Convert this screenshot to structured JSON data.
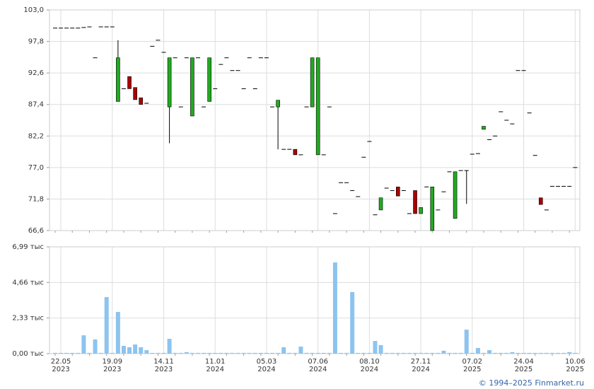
{
  "chart_data": [
    {
      "type": "candlestick",
      "open": [
        100,
        100,
        100,
        100,
        100,
        100.1,
        100.2,
        95.1,
        100.2,
        100.2,
        100.2,
        87.9,
        90.0,
        92.0,
        90.2,
        88.5,
        87.6,
        97.0,
        98.0,
        96.0,
        87.0,
        95.1,
        87.0,
        95.1,
        85.5,
        95.1,
        87.0,
        87.9,
        90.0,
        94.0,
        95.1,
        93.0,
        93.0,
        90.0,
        95.1,
        90.0,
        95.1,
        95.1,
        87.0,
        87.0,
        80.0,
        80.0,
        80.0,
        79.1,
        87.0,
        87.0,
        79.1,
        79.1,
        87.0,
        69.4,
        74.5,
        74.5,
        73.2,
        72.2,
        78.7,
        81.3,
        69.2,
        70.0,
        73.6,
        73.2,
        73.8,
        73.2,
        69.4,
        73.2,
        69.4,
        73.8,
        66.6,
        70.0,
        73.0,
        76.3,
        68.6,
        76.5,
        76.5,
        79.2,
        79.3,
        83.3,
        81.6,
        82.2,
        86.2,
        84.8,
        84.2,
        93.0,
        93.0,
        86.0,
        79.0,
        72.0,
        70.0,
        73.9,
        73.9,
        73.9,
        73.9,
        77.0
      ],
      "high": [
        100,
        100,
        100,
        100,
        100,
        100.1,
        100.2,
        95.1,
        100.2,
        100.2,
        100.2,
        98.0,
        90.0,
        92.0,
        90.2,
        88.5,
        87.6,
        97.0,
        98.0,
        96.0,
        95.1,
        95.1,
        87.0,
        95.1,
        95.1,
        95.1,
        87.0,
        95.1,
        90.0,
        94.0,
        95.1,
        93.0,
        93.0,
        90.0,
        95.1,
        90.0,
        95.1,
        95.1,
        87.0,
        88.1,
        80.0,
        80.0,
        80.0,
        79.1,
        87.0,
        95.1,
        95.1,
        79.1,
        87.0,
        69.4,
        74.5,
        74.5,
        73.2,
        72.2,
        78.7,
        81.3,
        69.2,
        72.0,
        73.6,
        73.2,
        73.8,
        73.2,
        69.4,
        73.2,
        70.4,
        73.8,
        73.8,
        70.0,
        73.0,
        76.3,
        76.3,
        76.5,
        76.5,
        79.2,
        79.3,
        83.8,
        81.6,
        82.2,
        86.2,
        84.8,
        84.2,
        93.0,
        93.0,
        86.0,
        79.0,
        72.0,
        70.0,
        73.9,
        73.9,
        73.9,
        73.9,
        77.0
      ],
      "low": [
        100,
        100,
        100,
        100,
        100,
        100.1,
        100.2,
        95.1,
        100.2,
        100.2,
        100.2,
        87.9,
        90.0,
        90.0,
        88.2,
        87.4,
        87.6,
        97.0,
        98.0,
        96.0,
        81.0,
        95.1,
        87.0,
        95.1,
        85.5,
        95.1,
        87.0,
        87.9,
        90.0,
        94.0,
        95.1,
        93.0,
        93.0,
        90.0,
        95.1,
        90.0,
        95.1,
        95.1,
        87.0,
        80.0,
        80.0,
        80.0,
        79.1,
        79.1,
        87.0,
        87.0,
        79.1,
        79.1,
        87.0,
        69.4,
        74.5,
        74.5,
        73.2,
        72.2,
        78.7,
        81.3,
        69.2,
        70.0,
        73.6,
        73.2,
        72.3,
        73.2,
        69.4,
        69.4,
        69.4,
        73.8,
        66.6,
        70.0,
        73.0,
        76.3,
        68.6,
        76.5,
        71.0,
        79.2,
        79.3,
        83.3,
        81.6,
        82.2,
        86.2,
        84.8,
        84.2,
        93.0,
        93.0,
        86.0,
        79.0,
        70.9,
        70.0,
        73.9,
        73.9,
        73.9,
        73.9,
        77.0
      ],
      "close": [
        100,
        100,
        100,
        100,
        100,
        100.1,
        100.2,
        95.1,
        100.2,
        100.2,
        100.2,
        95.1,
        90.0,
        90.0,
        88.2,
        87.4,
        87.6,
        97.0,
        98.0,
        96.0,
        95.1,
        95.1,
        87.0,
        95.1,
        95.1,
        95.1,
        87.0,
        95.1,
        90.0,
        94.0,
        95.1,
        93.0,
        93.0,
        90.0,
        95.1,
        90.0,
        95.1,
        95.1,
        87.0,
        88.1,
        80.0,
        80.0,
        79.1,
        79.1,
        87.0,
        95.1,
        95.1,
        79.1,
        87.0,
        69.4,
        74.5,
        74.5,
        73.2,
        72.2,
        78.7,
        81.3,
        69.2,
        72.0,
        73.6,
        73.2,
        72.3,
        73.2,
        69.4,
        69.4,
        70.4,
        73.8,
        73.8,
        70.0,
        73.0,
        76.3,
        76.3,
        76.5,
        76.5,
        79.2,
        79.3,
        83.8,
        81.6,
        82.2,
        86.2,
        84.8,
        84.2,
        93.0,
        93.0,
        86.0,
        79.0,
        70.9,
        70.0,
        73.9,
        73.9,
        73.9,
        73.9,
        77.0
      ],
      "up_color": "#22aa22",
      "down_color": "#aa0000",
      "ylim": [
        66.6,
        103.0
      ],
      "yticks": [
        {
          "value": 66.6,
          "label": "66,6"
        },
        {
          "value": 71.8,
          "label": "71,8"
        },
        {
          "value": 77.0,
          "label": "77,0"
        },
        {
          "value": 82.2,
          "label": "82,2"
        },
        {
          "value": 87.4,
          "label": "87,4"
        },
        {
          "value": 92.6,
          "label": "92,6"
        },
        {
          "value": 97.8,
          "label": "97,8"
        },
        {
          "value": 103.0,
          "label": "103,0"
        }
      ],
      "grid": true
    },
    {
      "type": "bar",
      "categories": [
        null,
        "22.05 2023",
        null,
        null,
        null,
        null,
        null,
        null,
        null,
        null,
        "19.09 2023",
        null,
        null,
        null,
        null,
        null,
        null,
        null,
        null,
        "14.11 2023",
        null,
        null,
        null,
        null,
        null,
        null,
        null,
        null,
        "11.01 2024",
        null,
        null,
        null,
        null,
        null,
        null,
        null,
        null,
        "05.03 2024",
        null,
        null,
        null,
        null,
        null,
        null,
        null,
        null,
        "07.06 2024",
        null,
        null,
        null,
        null,
        null,
        null,
        null,
        null,
        "08.10 2024",
        null,
        null,
        null,
        null,
        null,
        null,
        null,
        null,
        "27.11 2024",
        null,
        null,
        null,
        null,
        null,
        null,
        null,
        null,
        "07.02 2025",
        null,
        null,
        null,
        null,
        null,
        null,
        null,
        null,
        "24.04 2025",
        null,
        null,
        null,
        null,
        null,
        null,
        null,
        null,
        "10.06 2025"
      ],
      "values": [
        0.05,
        0.05,
        0.05,
        0.05,
        0.05,
        1.2,
        0.05,
        0.93,
        0.05,
        3.7,
        0.05,
        2.73,
        0.51,
        0.42,
        0.6,
        0.42,
        0.23,
        0.05,
        0.05,
        0.05,
        0.97,
        0.05,
        0.05,
        0.1,
        0.05,
        0.05,
        0.05,
        0.05,
        0.05,
        0.05,
        0.05,
        0.05,
        0.05,
        0.05,
        0.05,
        0.05,
        0.05,
        0.05,
        0.05,
        0.05,
        0.42,
        0.05,
        0.05,
        0.46,
        0.05,
        0.05,
        0.05,
        0.05,
        0.05,
        5.97,
        0.05,
        0.05,
        4.03,
        0.05,
        0.05,
        0.05,
        0.83,
        0.56,
        0.05,
        0.05,
        0.05,
        0.05,
        0.05,
        0.05,
        0.05,
        0.05,
        0.05,
        0.05,
        0.19,
        0.05,
        0.05,
        0.05,
        1.57,
        0.05,
        0.37,
        0.05,
        0.23,
        0.05,
        0.05,
        0.05,
        0.1,
        0.05,
        0.05,
        0.05,
        0.05,
        0.05,
        0.05,
        0.05,
        0.05,
        0.05,
        0.1,
        0.05
      ],
      "color": "#8cc4ef",
      "ylim": [
        0,
        6.99
      ],
      "yticks": [
        {
          "value": 0,
          "label": "0,00 тыс"
        },
        {
          "value": 2.33,
          "label": "2,33 тыс"
        },
        {
          "value": 4.66,
          "label": "4,66 тыс"
        },
        {
          "value": 6.99,
          "label": "6,99 тыс"
        }
      ],
      "grid": true
    }
  ],
  "footer": "© 1994–2025 Finmarket.ru"
}
